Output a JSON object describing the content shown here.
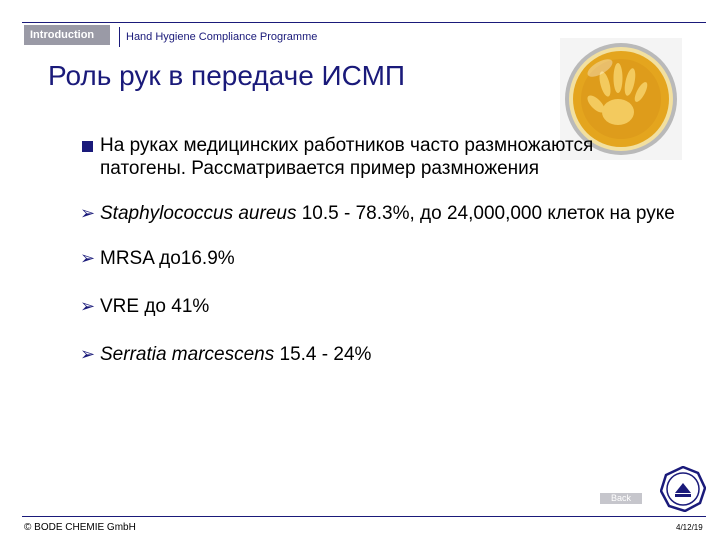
{
  "header": {
    "section_tab": "Introduction",
    "program_title": "Hand Hygiene Compliance Programme"
  },
  "slide": {
    "title": "Роль рук в передаче ИСМП",
    "bullets": [
      {
        "text": "На руках медицинских работников часто размножаются патогены. Рассматривается пример размножения"
      },
      {
        "italic": "Staphylococcus aureus",
        "text": " 10.5 - 78.3%, до 24,000,000 клеток на руке"
      },
      {
        "text": "MRSA до16.9%"
      },
      {
        "text": "VRE до 41%"
      },
      {
        "italic": "Serratia marcescens",
        "text": " 15.4 - 24%"
      }
    ]
  },
  "nav": {
    "back_label": "Back"
  },
  "footer": {
    "copyright": "© BODE CHEMIE GmbH",
    "page": "4/12/19"
  },
  "icons": {
    "bullet_primary": "square-bullet-icon",
    "bullet_secondary": "arrow-bullet-icon",
    "image": "handprint-petri-dish",
    "logo": "certification-seal-icon"
  },
  "colors": {
    "navy": "#1a1a7a",
    "tab_gray": "#9a9aa6",
    "plate_orange": "#e0a020"
  }
}
